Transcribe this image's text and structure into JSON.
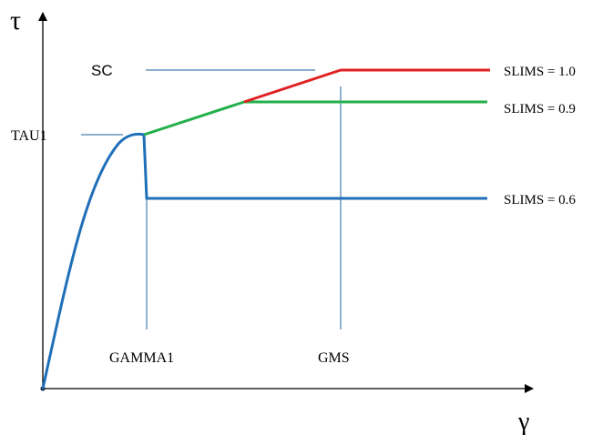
{
  "axes": {
    "y_symbol": "τ",
    "x_symbol": "γ"
  },
  "labels": {
    "sc": "SC",
    "tau1": "TAU1",
    "gamma1": "GAMMA1",
    "gms": "GMS"
  },
  "curves": [
    {
      "label": "SLIMS = 1.0",
      "color": "#e02020"
    },
    {
      "label": "SLIMS = 0.9",
      "color": "#22b04a"
    },
    {
      "label": "SLIMS = 0.6",
      "color": "#1f6fb8"
    }
  ],
  "colors": {
    "axis": "#000000",
    "guide": "#4a7fb0",
    "base_curve": "#1f6fb8"
  }
}
